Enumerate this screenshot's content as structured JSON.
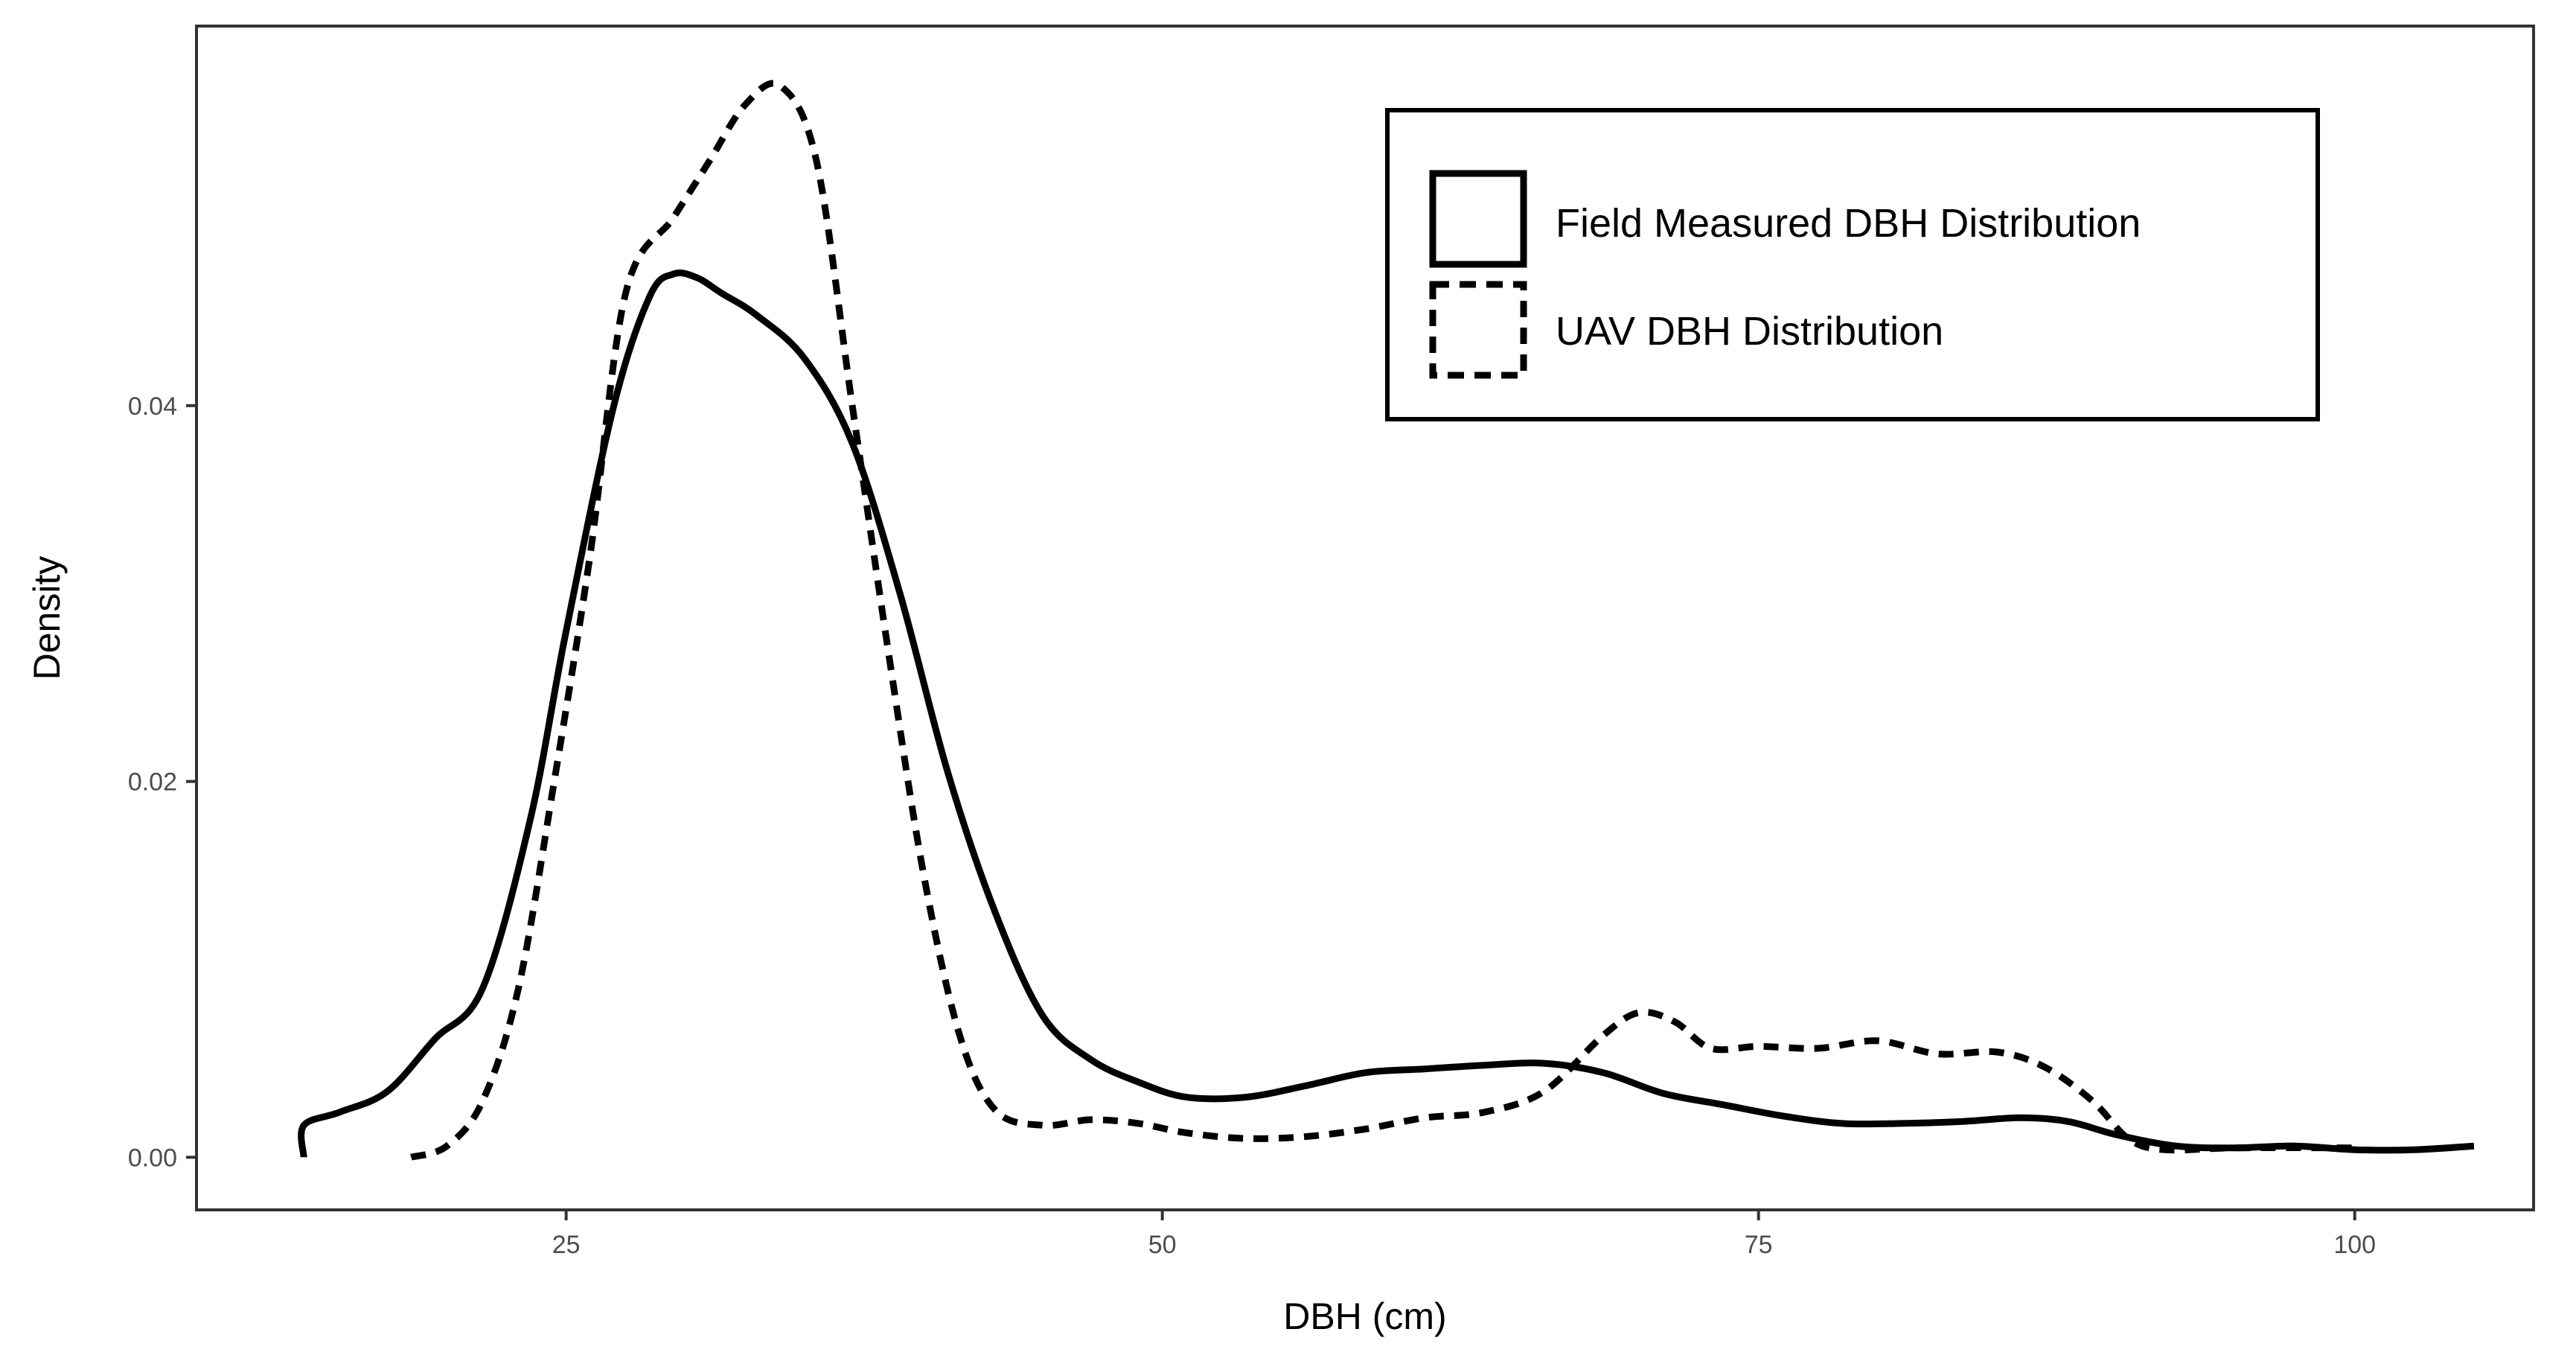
{
  "chart_data": {
    "type": "line",
    "kind": "density",
    "xlabel": "DBH (cm)",
    "ylabel": "Density",
    "xlim": [
      9.5,
      107.5
    ],
    "ylim": [
      -0.0028,
      0.0602
    ],
    "x_ticks": [
      25,
      50,
      75,
      100
    ],
    "x_tick_labels": [
      "25",
      "50",
      "75",
      "100"
    ],
    "y_ticks": [
      0.0,
      0.02,
      0.04
    ],
    "y_tick_labels": [
      "0.00",
      "0.02",
      "0.04"
    ],
    "grid": false,
    "legend_position": "top-right",
    "series": [
      {
        "name": "Field Measured DBH Distribution",
        "style": "solid",
        "x": [
          14.0,
          14.0,
          15.5,
          17.5,
          19.5,
          21.5,
          23.5,
          25.0,
          27.0,
          28.5,
          29.5,
          30.5,
          31.5,
          33.0,
          35.0,
          37.0,
          39.0,
          41.0,
          43.0,
          45.0,
          47.0,
          49.0,
          51.0,
          53.5,
          56.0,
          58.5,
          61.0,
          63.5,
          66.0,
          68.5,
          71.0,
          73.5,
          76.0,
          78.5,
          81.0,
          83.5,
          86.0,
          88.0,
          90.0,
          92.5,
          95.0,
          97.5,
          100.0,
          102.5,
          105.0
        ],
        "y": [
          0.0,
          0.0017,
          0.0024,
          0.0035,
          0.0063,
          0.009,
          0.018,
          0.028,
          0.04,
          0.0458,
          0.047,
          0.0468,
          0.046,
          0.0448,
          0.0425,
          0.038,
          0.03,
          0.0205,
          0.013,
          0.0075,
          0.0052,
          0.004,
          0.0032,
          0.0032,
          0.0038,
          0.0045,
          0.0047,
          0.0049,
          0.005,
          0.0045,
          0.0034,
          0.0028,
          0.0022,
          0.0018,
          0.0018,
          0.0019,
          0.0021,
          0.0019,
          0.0012,
          0.0006,
          0.0005,
          0.0006,
          0.0004,
          0.0004,
          0.0006
        ]
      },
      {
        "name": "UAV DBH Distribution",
        "style": "dashed",
        "x": [
          18.5,
          20.0,
          21.5,
          23.0,
          24.5,
          26.0,
          27.5,
          29.5,
          31.0,
          32.5,
          34.0,
          35.5,
          37.0,
          38.5,
          40.0,
          41.5,
          43.0,
          45.0,
          47.0,
          49.0,
          51.0,
          53.5,
          56.0,
          58.5,
          61.0,
          63.5,
          66.0,
          68.5,
          70.0,
          71.5,
          73.0,
          75.0,
          77.5,
          80.0,
          82.5,
          85.0,
          87.0,
          89.0,
          90.5,
          92.0,
          95.0,
          100.0
        ],
        "y": [
          0.0,
          0.0006,
          0.003,
          0.009,
          0.02,
          0.032,
          0.046,
          0.05,
          0.053,
          0.056,
          0.057,
          0.053,
          0.04,
          0.027,
          0.015,
          0.0065,
          0.0025,
          0.0017,
          0.002,
          0.0018,
          0.0013,
          0.001,
          0.0011,
          0.0015,
          0.0021,
          0.0024,
          0.0035,
          0.0065,
          0.0077,
          0.0072,
          0.0058,
          0.0059,
          0.0058,
          0.0062,
          0.0055,
          0.0056,
          0.0048,
          0.003,
          0.001,
          0.0004,
          0.0005,
          0.0005
        ]
      }
    ]
  }
}
